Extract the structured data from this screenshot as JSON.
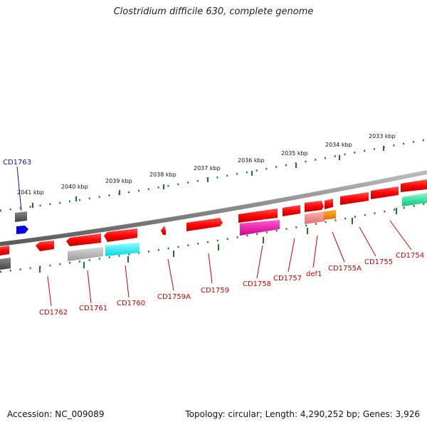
{
  "title": "Clostridium difficile 630, complete genome",
  "footer": {
    "accession": "Accession: NC_009089",
    "summary": "Topology: circular; Length: 4,290,252 bp; Genes: 3,926"
  },
  "colors": {
    "backbone": "#7a7a7a",
    "feature_red": "#ff0000",
    "tick_green": "#1a7a1a",
    "label_red": "#d00000",
    "label_blue": "#1010b0"
  },
  "kbp_labels": [
    "2041 kbp",
    "2040 kbp",
    "2039 kbp",
    "2038 kbp",
    "2037 kbp",
    "2036 kbp",
    "2035 kbp",
    "2034 kbp",
    "2033 kbp"
  ],
  "gene_labels": {
    "CD1763": "CD1763",
    "CD1762": "CD1762",
    "CD1761": "CD1761",
    "CD1760": "CD1760",
    "CD1759A": "CD1759A",
    "CD1759": "CD1759",
    "CD1758": "CD1758",
    "CD1757": "CD1757",
    "def1": "def1",
    "CD1755A": "CD1755A",
    "CD1755": "CD1755",
    "CD1754": "CD1754"
  }
}
